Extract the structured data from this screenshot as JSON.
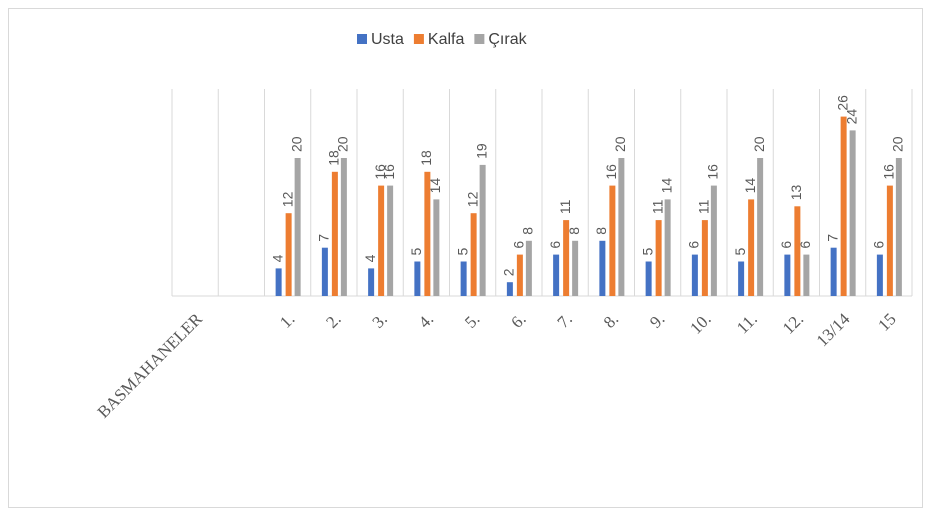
{
  "chart_data": {
    "type": "bar",
    "categories": [
      "BASMAHANELER",
      null,
      "1.",
      "2.",
      "3.",
      "4.",
      "5.",
      "6.",
      "7.",
      "8.",
      "9.",
      "10.",
      "11.",
      "12.",
      "13/14",
      "15"
    ],
    "series": [
      {
        "name": "Usta",
        "color": "#4472c4",
        "values": [
          null,
          null,
          4,
          7,
          4,
          5,
          5,
          2,
          6,
          8,
          5,
          6,
          5,
          6,
          7,
          6
        ]
      },
      {
        "name": "Kalfa",
        "color": "#ed7d31",
        "values": [
          null,
          null,
          12,
          18,
          16,
          18,
          12,
          6,
          11,
          16,
          11,
          11,
          14,
          13,
          26,
          16
        ]
      },
      {
        "name": "Çırak",
        "color": "#a5a5a5",
        "values": [
          null,
          null,
          20,
          20,
          16,
          14,
          19,
          8,
          8,
          20,
          14,
          16,
          20,
          6,
          24,
          20
        ]
      }
    ],
    "ylim": [
      0,
      30
    ],
    "grid": true,
    "legend": "top"
  }
}
